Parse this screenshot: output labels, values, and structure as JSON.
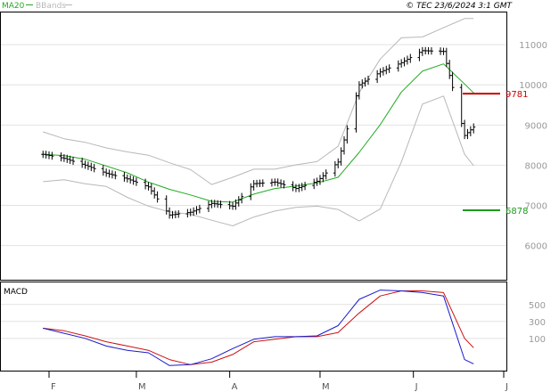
{
  "header": {
    "legend": [
      {
        "label": "MA20",
        "color": "#22aa22"
      },
      {
        "label": "BBands",
        "color": "#b8b8b8"
      }
    ],
    "copyright": "© TEC 23/6/2024 3:1 GMT"
  },
  "chart_data": [
    {
      "type": "line",
      "subtype": "ohlc",
      "title": "",
      "x_axis": {
        "tick_labels": [
          "F",
          "M",
          "A",
          "M",
          "J",
          "J"
        ],
        "range": [
          "2024-02-01",
          "2024-07-01"
        ]
      },
      "y_axis": {
        "tick_labels": [
          "6000",
          "7000",
          "8000",
          "9000",
          "10000",
          "11000"
        ],
        "tick_values": [
          6000,
          7000,
          8000,
          9000,
          10000,
          11000
        ],
        "range": [
          5150,
          11800
        ],
        "side": "right"
      },
      "grid": true,
      "levels": [
        {
          "label": "9781",
          "value": 9781,
          "color": "#cc0000"
        },
        {
          "label": "6878",
          "value": 6878,
          "color": "#1e9a1e"
        }
      ],
      "series": [
        {
          "name": "MA20",
          "color": "#22aa22",
          "x": [
            "2024-01-30",
            "2024-02-06",
            "2024-02-13",
            "2024-02-20",
            "2024-02-27",
            "2024-03-05",
            "2024-03-12",
            "2024-03-19",
            "2024-03-26",
            "2024-04-02",
            "2024-04-09",
            "2024-04-16",
            "2024-04-23",
            "2024-04-30",
            "2024-05-07",
            "2024-05-14",
            "2024-05-21",
            "2024-05-28",
            "2024-06-04",
            "2024-06-11",
            "2024-06-18",
            "2024-06-21"
          ],
          "y": [
            8270,
            8240,
            8150,
            7980,
            7810,
            7580,
            7400,
            7260,
            7100,
            7080,
            7280,
            7420,
            7480,
            7560,
            7700,
            8320,
            9010,
            9820,
            10340,
            10520,
            10020,
            9800
          ]
        },
        {
          "name": "BBands",
          "role": "upper",
          "color": "#b8b8b8",
          "x": [
            "2024-01-30",
            "2024-02-06",
            "2024-02-13",
            "2024-02-20",
            "2024-02-27",
            "2024-03-05",
            "2024-03-12",
            "2024-03-19",
            "2024-03-26",
            "2024-04-02",
            "2024-04-09",
            "2024-04-16",
            "2024-04-23",
            "2024-04-30",
            "2024-05-07",
            "2024-05-14",
            "2024-05-21",
            "2024-05-28",
            "2024-06-04",
            "2024-06-11",
            "2024-06-18",
            "2024-06-21"
          ],
          "y": [
            8830,
            8660,
            8570,
            8430,
            8330,
            8250,
            8060,
            7890,
            7520,
            7700,
            7900,
            7900,
            8010,
            8090,
            8470,
            9810,
            10640,
            11170,
            11190,
            11420,
            11650,
            11650
          ]
        },
        {
          "name": "BBands",
          "role": "lower",
          "color": "#b8b8b8",
          "x": [
            "2024-01-30",
            "2024-02-06",
            "2024-02-13",
            "2024-02-20",
            "2024-02-27",
            "2024-03-05",
            "2024-03-12",
            "2024-03-19",
            "2024-03-26",
            "2024-04-02",
            "2024-04-09",
            "2024-04-16",
            "2024-04-23",
            "2024-04-30",
            "2024-05-07",
            "2024-05-14",
            "2024-05-21",
            "2024-05-28",
            "2024-06-04",
            "2024-06-11",
            "2024-06-18",
            "2024-06-21"
          ],
          "y": [
            7590,
            7640,
            7540,
            7470,
            7200,
            6980,
            6840,
            6780,
            6630,
            6490,
            6710,
            6860,
            6950,
            6980,
            6900,
            6610,
            6910,
            8080,
            9520,
            9720,
            8270,
            7990
          ]
        },
        {
          "name": "OHLC",
          "color": "#000000",
          "x": [
            "2024-01-30",
            "2024-02-06",
            "2024-02-13",
            "2024-02-20",
            "2024-02-27",
            "2024-03-05",
            "2024-03-12",
            "2024-03-19",
            "2024-03-26",
            "2024-04-02",
            "2024-04-09",
            "2024-04-16",
            "2024-04-23",
            "2024-04-30",
            "2024-05-07",
            "2024-05-14",
            "2024-05-21",
            "2024-05-28",
            "2024-06-04",
            "2024-06-11",
            "2024-06-18",
            "2024-06-21"
          ],
          "y": [
            8270,
            8170,
            8000,
            7800,
            7660,
            7460,
            6760,
            6830,
            7050,
            6980,
            7540,
            7580,
            7420,
            7600,
            8080,
            10000,
            10320,
            10550,
            10850,
            10830,
            8740,
            8950
          ]
        }
      ]
    },
    {
      "type": "line",
      "title": "MACD",
      "y_axis": {
        "tick_labels": [
          "100",
          "300",
          "500"
        ],
        "tick_values": [
          100,
          300,
          500
        ],
        "range": [
          -280,
          760
        ],
        "side": "right"
      },
      "grid": true,
      "series": [
        {
          "name": "MACD",
          "color": "#1a1acc",
          "x": [
            "2024-01-30",
            "2024-02-06",
            "2024-02-13",
            "2024-02-20",
            "2024-02-27",
            "2024-03-05",
            "2024-03-12",
            "2024-03-19",
            "2024-03-26",
            "2024-04-02",
            "2024-04-09",
            "2024-04-16",
            "2024-04-23",
            "2024-04-30",
            "2024-05-07",
            "2024-05-14",
            "2024-05-21",
            "2024-05-28",
            "2024-06-04",
            "2024-06-11",
            "2024-06-18",
            "2024-06-21"
          ],
          "y": [
            220,
            160,
            100,
            10,
            -40,
            -70,
            -220,
            -210,
            -140,
            -20,
            90,
            120,
            120,
            130,
            250,
            560,
            670,
            660,
            640,
            600,
            -150,
            -200
          ]
        },
        {
          "name": "Signal",
          "color": "#cc1111",
          "x": [
            "2024-01-30",
            "2024-02-06",
            "2024-02-13",
            "2024-02-20",
            "2024-02-27",
            "2024-03-05",
            "2024-03-12",
            "2024-03-19",
            "2024-03-26",
            "2024-04-02",
            "2024-04-09",
            "2024-04-16",
            "2024-04-23",
            "2024-04-30",
            "2024-05-07",
            "2024-05-14",
            "2024-05-21",
            "2024-05-28",
            "2024-06-04",
            "2024-06-11",
            "2024-06-18",
            "2024-06-21"
          ],
          "y": [
            220,
            190,
            130,
            60,
            10,
            -40,
            -150,
            -210,
            -180,
            -90,
            60,
            90,
            120,
            120,
            170,
            400,
            600,
            660,
            660,
            640,
            100,
            -10
          ]
        }
      ]
    }
  ]
}
